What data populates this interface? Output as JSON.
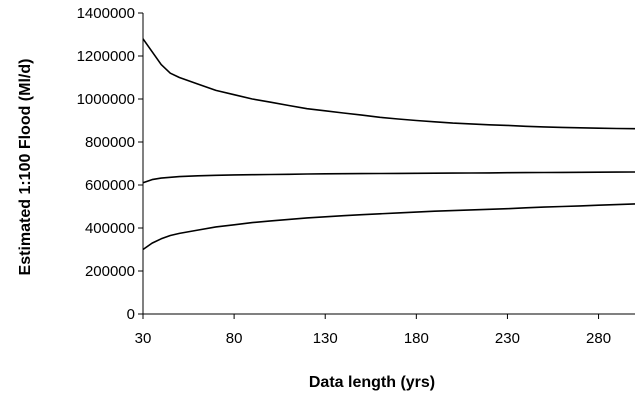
{
  "chart_data": {
    "type": "line",
    "title": "",
    "xlabel": "Data length (yrs)",
    "ylabel": "Estimated 1:100 Flood (Ml/d)",
    "xlim": [
      30,
      300
    ],
    "ylim": [
      0,
      1400000
    ],
    "x_ticks": [
      30,
      80,
      130,
      180,
      230,
      280
    ],
    "y_ticks": [
      0,
      200000,
      400000,
      600000,
      800000,
      1000000,
      1200000,
      1400000
    ],
    "x_tick_labels": [
      "30",
      "80",
      "130",
      "180",
      "230",
      "280"
    ],
    "y_tick_labels": [
      "0",
      "200000",
      "400000",
      "600000",
      "800000",
      "1000000",
      "1200000",
      "1400000"
    ],
    "grid": false,
    "legend": "none",
    "line_color": "#000000",
    "series": [
      {
        "x": [
          30,
          35,
          40,
          45,
          50,
          60,
          70,
          80,
          90,
          100,
          110,
          120,
          130,
          140,
          150,
          160,
          170,
          180,
          190,
          200,
          210,
          220,
          230,
          240,
          250,
          260,
          270,
          280,
          290,
          300
        ],
        "values": [
          1280000,
          1220000,
          1160000,
          1120000,
          1100000,
          1070000,
          1040000,
          1020000,
          1000000,
          985000,
          970000,
          955000,
          945000,
          935000,
          925000,
          915000,
          907000,
          900000,
          894000,
          888000,
          884000,
          880000,
          877000,
          873000,
          870000,
          868000,
          866000,
          864000,
          863000,
          862000
        ]
      },
      {
        "x": [
          30,
          35,
          40,
          45,
          50,
          60,
          70,
          80,
          90,
          100,
          110,
          120,
          130,
          140,
          150,
          160,
          170,
          180,
          190,
          200,
          210,
          220,
          230,
          240,
          250,
          260,
          270,
          280,
          290,
          300
        ],
        "values": [
          610000,
          625000,
          632000,
          636000,
          639000,
          643000,
          645000,
          647000,
          648000,
          649000,
          650000,
          651000,
          652000,
          652500,
          653000,
          653500,
          654000,
          654500,
          655000,
          655500,
          656000,
          656500,
          657000,
          657500,
          658000,
          658500,
          659000,
          659500,
          660000,
          660500
        ]
      },
      {
        "x": [
          30,
          35,
          40,
          45,
          50,
          60,
          70,
          80,
          90,
          100,
          110,
          120,
          130,
          140,
          150,
          160,
          170,
          180,
          190,
          200,
          210,
          220,
          230,
          240,
          250,
          260,
          270,
          280,
          290,
          300
        ],
        "values": [
          300000,
          330000,
          350000,
          365000,
          375000,
          390000,
          405000,
          415000,
          425000,
          433000,
          440000,
          447000,
          452000,
          457000,
          462000,
          466000,
          470000,
          474000,
          478000,
          481000,
          484000,
          487000,
          490000,
          494000,
          497000,
          500000,
          503000,
          506000,
          509000,
          512000
        ]
      }
    ]
  }
}
